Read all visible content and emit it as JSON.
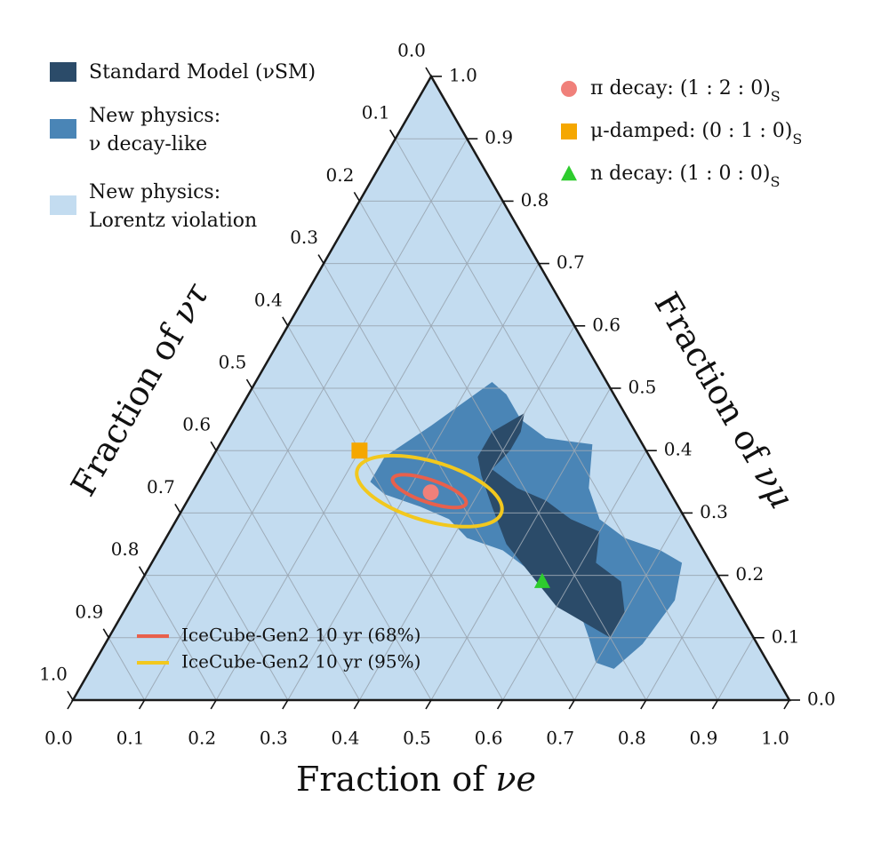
{
  "chart_data": {
    "type": "ternary-contour",
    "axes": {
      "bottom": {
        "label_prefix": "Fraction of ",
        "label_symbol": "νe",
        "quantity": "f_e"
      },
      "right": {
        "label_prefix": "Fraction of ",
        "label_symbol": "νμ",
        "quantity": "f_mu"
      },
      "left": {
        "label_prefix": "Fraction of ",
        "label_symbol": "ντ",
        "quantity": "f_tau"
      },
      "ticks": [
        "0.0",
        "0.1",
        "0.2",
        "0.3",
        "0.4",
        "0.5",
        "0.6",
        "0.7",
        "0.8",
        "0.9",
        "1.0"
      ],
      "range": [
        0,
        1
      ],
      "grid": true
    },
    "regions_legend": [
      {
        "label": "Standard Model (νSM)",
        "color": "#2b4b69"
      },
      {
        "label_line1": "New physics:",
        "label_line2": "ν decay-like",
        "color": "#4a85b6"
      },
      {
        "label_line1": "New physics:",
        "label_line2": "Lorentz violation",
        "color": "#c3dcf0"
      }
    ],
    "regions": [
      {
        "name": "New physics: Lorentz violation",
        "color": "#c3dcf0",
        "points": [
          [
            1,
            0
          ],
          [
            0,
            1
          ],
          [
            0,
            0
          ]
        ]
      },
      {
        "name": "New physics: ν decay-like",
        "color": "#4a85b6",
        "points": [
          [
            0.33,
            0.51
          ],
          [
            0.28,
            0.44
          ],
          [
            0.24,
            0.39
          ],
          [
            0.24,
            0.35
          ],
          [
            0.27,
            0.33
          ],
          [
            0.33,
            0.31
          ],
          [
            0.38,
            0.29
          ],
          [
            0.42,
            0.26
          ],
          [
            0.48,
            0.24
          ],
          [
            0.53,
            0.21
          ],
          [
            0.58,
            0.18
          ],
          [
            0.63,
            0.15
          ],
          [
            0.67,
            0.1
          ],
          [
            0.7,
            0.06
          ],
          [
            0.73,
            0.05
          ],
          [
            0.75,
            0.09
          ],
          [
            0.76,
            0.16
          ],
          [
            0.74,
            0.22
          ],
          [
            0.7,
            0.24
          ],
          [
            0.64,
            0.26
          ],
          [
            0.59,
            0.29
          ],
          [
            0.55,
            0.34
          ],
          [
            0.52,
            0.41
          ],
          [
            0.45,
            0.42
          ],
          [
            0.4,
            0.45
          ],
          [
            0.36,
            0.49
          ],
          [
            0.33,
            0.51
          ]
        ]
      },
      {
        "name": "Standard Model (νSM)",
        "color": "#2b4b69",
        "points": [
          [
            0.4,
            0.46
          ],
          [
            0.41,
            0.43
          ],
          [
            0.41,
            0.4
          ],
          [
            0.4,
            0.37
          ],
          [
            0.45,
            0.34
          ],
          [
            0.5,
            0.32
          ],
          [
            0.55,
            0.29
          ],
          [
            0.6,
            0.27
          ],
          [
            0.62,
            0.22
          ],
          [
            0.67,
            0.19
          ],
          [
            0.7,
            0.14
          ],
          [
            0.7,
            0.1
          ],
          [
            0.66,
            0.12
          ],
          [
            0.6,
            0.15
          ],
          [
            0.54,
            0.2
          ],
          [
            0.48,
            0.25
          ],
          [
            0.43,
            0.31
          ],
          [
            0.39,
            0.36
          ],
          [
            0.37,
            0.39
          ],
          [
            0.37,
            0.43
          ],
          [
            0.4,
            0.46
          ]
        ]
      }
    ],
    "ellipses": [
      {
        "name": "IceCube-Gen2 10 yr (68%)",
        "color": "#e8604c",
        "center": [
          0.33,
          0.335
        ],
        "semi_major": 0.065,
        "semi_minor": 0.015,
        "angle_deg": 160
      },
      {
        "name": "IceCube-Gen2 10 yr (95%)",
        "color": "#f2c81e",
        "center": [
          0.33,
          0.335
        ],
        "semi_major": 0.125,
        "semi_minor": 0.04,
        "angle_deg": 160
      }
    ],
    "markers": [
      {
        "label": "π decay: (1 : 2 : 0)",
        "subscript": "S",
        "shape": "circle",
        "color": "#f0807a",
        "point": [
          0.333,
          0.333
        ]
      },
      {
        "label": "μ-damped: (0 : 1 : 0)",
        "subscript": "S",
        "shape": "square",
        "color": "#f5a700",
        "point": [
          0.2,
          0.4
        ]
      },
      {
        "label": "n decay: (1 : 0 : 0)",
        "subscript": "S",
        "shape": "triangle",
        "color": "#2ecc2e",
        "point": [
          0.56,
          0.19
        ]
      }
    ],
    "lines_legend": [
      {
        "label": "IceCube-Gen2 10 yr (68%)",
        "color": "#e8604c"
      },
      {
        "label": "IceCube-Gen2 10 yr (95%)",
        "color": "#f2c81e"
      }
    ],
    "triangle_outline_color": "#1a1a1a",
    "grid_color": "#9aa6b2"
  }
}
